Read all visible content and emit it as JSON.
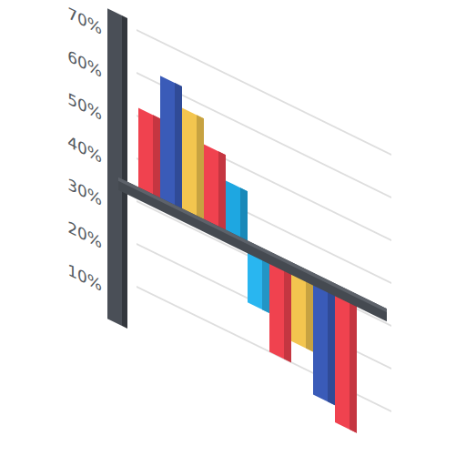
{
  "chart_data": {
    "type": "bar",
    "categories": [
      null,
      null,
      null,
      null,
      null,
      null,
      null,
      null,
      null,
      null
    ],
    "values": [
      52,
      62,
      57,
      51,
      45,
      19,
      10,
      15,
      5,
      1
    ],
    "baseline": 32,
    "colors": [
      "#f0424f",
      "#3a5bb8",
      "#f3c54f",
      "#f0424f",
      "#1ea7e1",
      "#29b6f0",
      "#f0424f",
      "#f3c54f",
      "#3a5bb8",
      "#f0424f"
    ],
    "ylim": [
      0,
      70
    ],
    "yticks": [
      {
        "value": 10,
        "label": "10%"
      },
      {
        "value": 20,
        "label": "20%"
      },
      {
        "value": 30,
        "label": "30%"
      },
      {
        "value": 40,
        "label": "40%"
      },
      {
        "value": 50,
        "label": "50%"
      },
      {
        "value": 60,
        "label": "60%"
      },
      {
        "value": 70,
        "label": "70%"
      }
    ],
    "grid": true,
    "tick_labels": "y"
  }
}
